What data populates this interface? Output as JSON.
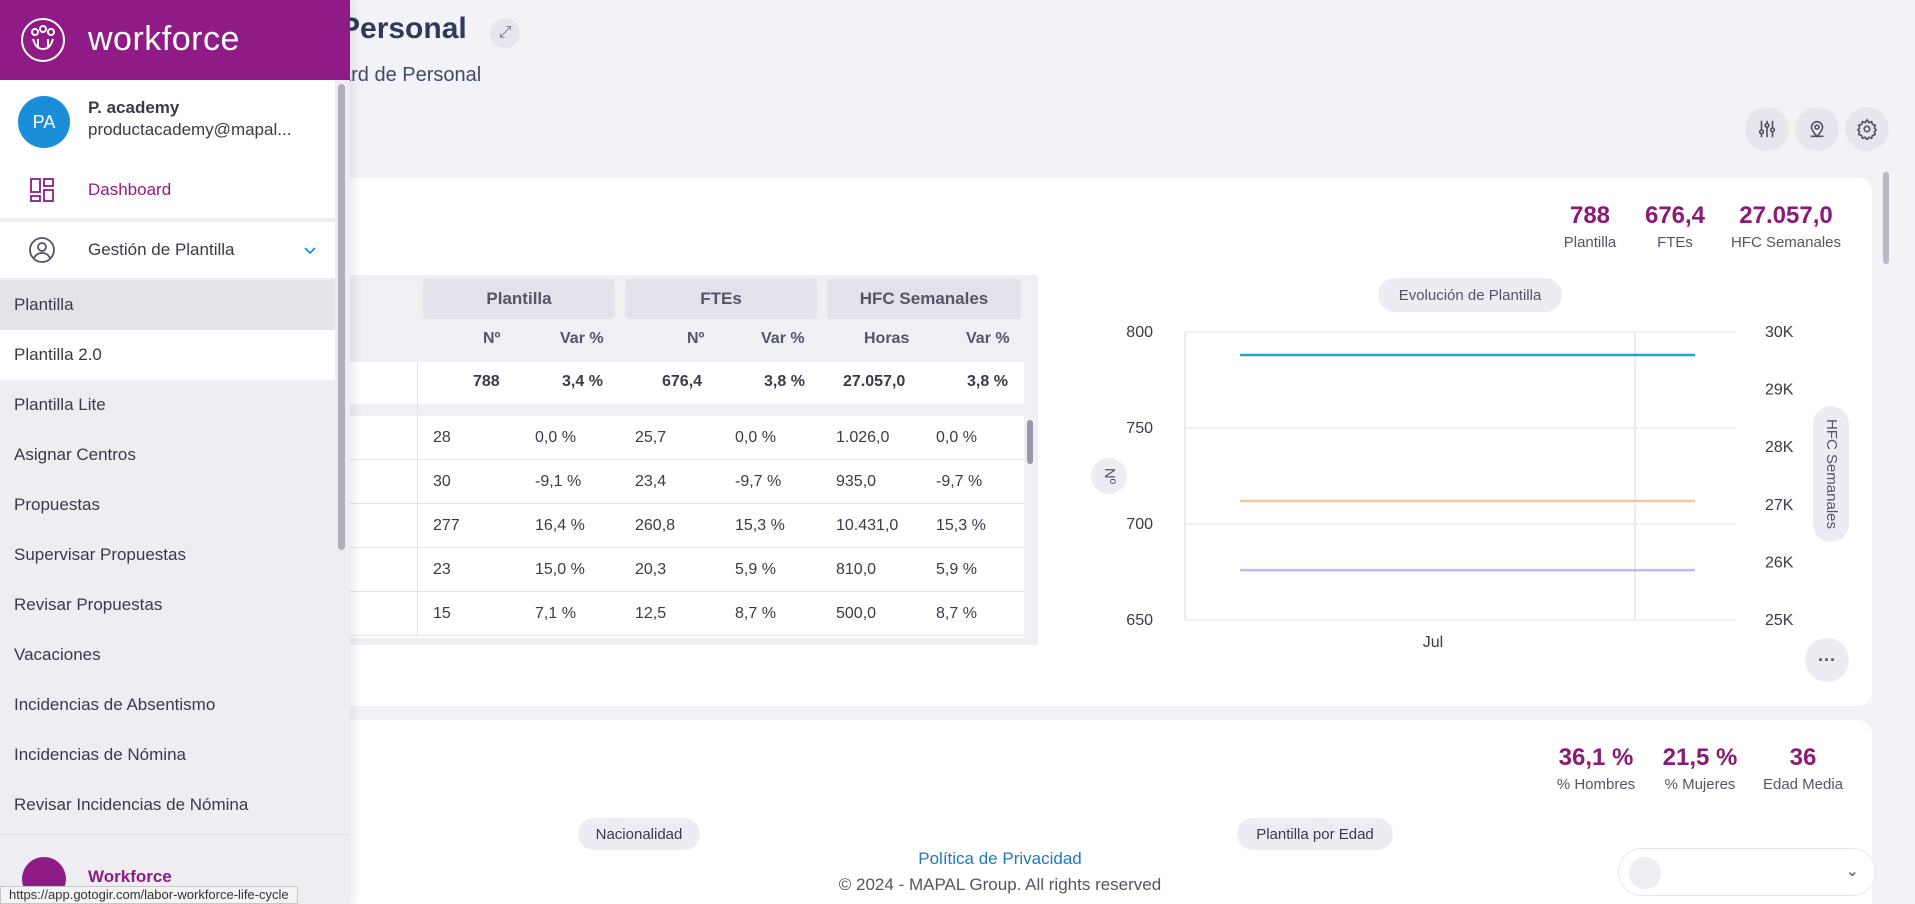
{
  "app": {
    "brand": "workforce",
    "brand_color": "#8f1b87",
    "accent": "#8a1a74"
  },
  "header": {
    "title": "Personal",
    "subtitle": "ard de Personal",
    "tools": [
      "filters-icon",
      "location-icon",
      "settings-icon"
    ]
  },
  "kpis_top": [
    {
      "value": "788",
      "label": "Plantilla"
    },
    {
      "value": "676,4",
      "label": "FTEs"
    },
    {
      "value": "27.057,0",
      "label": "HFC Semanales"
    }
  ],
  "table": {
    "groups": [
      "Plantilla",
      "FTEs",
      "HFC Semanales"
    ],
    "subheaders": [
      "Nº",
      "Var %",
      "Nº",
      "Var %",
      "Horas",
      "Var %"
    ],
    "totals": [
      "788",
      "3,4 %",
      "676,4",
      "3,8 %",
      "27.057,0",
      "3,8 %"
    ],
    "rows": [
      [
        "28",
        "0,0 %",
        "25,7",
        "0,0 %",
        "1.026,0",
        "0,0 %"
      ],
      [
        "30",
        "-9,1 %",
        "23,4",
        "-9,7 %",
        "935,0",
        "-9,7 %"
      ],
      [
        "277",
        "16,4 %",
        "260,8",
        "15,3 %",
        "10.431,0",
        "15,3 %"
      ],
      [
        "23",
        "15,0 %",
        "20,3",
        "5,9 %",
        "810,0",
        "5,9 %"
      ],
      [
        "15",
        "7,1 %",
        "12,5",
        "8,7 %",
        "500,0",
        "8,7 %"
      ]
    ]
  },
  "chart_pill": "Evolución de Plantilla",
  "chart_data": {
    "type": "line",
    "title": "Evolución de Plantilla",
    "categories": [
      "Jul"
    ],
    "xlabel": "",
    "ylabel": "Nº",
    "y2label": "HFC Semanales",
    "ylim": [
      650,
      800
    ],
    "y2lim": [
      25000,
      30000
    ],
    "yticks": [
      "800",
      "750",
      "700",
      "650"
    ],
    "y2ticks": [
      "30K",
      "29K",
      "28K",
      "27K",
      "26K",
      "25K"
    ],
    "series": [
      {
        "color": "#2a9fd6",
        "axis": "left",
        "values": [
          788
        ]
      },
      {
        "color": "#f4c79a",
        "axis": "left",
        "values": [
          712
        ]
      },
      {
        "color": "#c8b7ec",
        "axis": "left",
        "values": [
          676
        ]
      }
    ],
    "grid": true
  },
  "more_label": "···",
  "kpis_bottom": [
    {
      "value": "36,1 %",
      "label": "% Hombres"
    },
    {
      "value": "21,5 %",
      "label": "% Mujeres"
    },
    {
      "value": "36",
      "label": "Edad Media"
    }
  ],
  "section_pills": [
    "Nacionalidad",
    "Plantilla por Edad"
  ],
  "footer": {
    "privacy": "Política de Privacidad",
    "copyright": "© 2024 - MAPAL Group. All rights reserved"
  },
  "sidebar": {
    "user": {
      "initials": "PA",
      "name": "P. academy",
      "email": "productacademy@mapal..."
    },
    "nav": [
      {
        "label": "Dashboard",
        "icon": "dashboard-icon"
      },
      {
        "label": "Gestión de Plantilla",
        "icon": "user-circle-icon"
      }
    ],
    "subitems": [
      "Plantilla",
      "Plantilla 2.0",
      "Plantilla Lite",
      "Asignar Centros",
      "Propuestas",
      "Supervisar Propuestas",
      "Revisar Propuestas",
      "Vacaciones",
      "Incidencias de Absentismo",
      "Incidencias de Nómina",
      "Revisar Incidencias de Nómina"
    ],
    "bottom_label": "Workforce"
  },
  "status_url": "https://app.gotogir.com/labor-workforce-life-cycle"
}
